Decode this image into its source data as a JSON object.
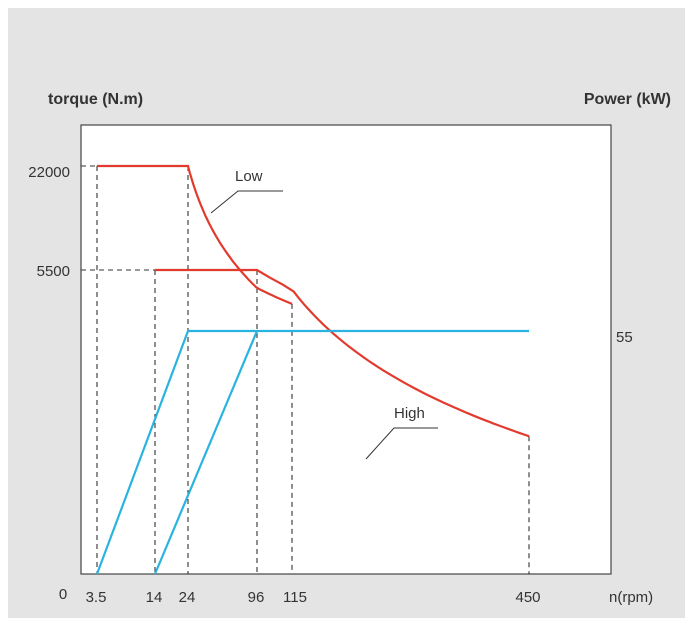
{
  "chart_data": {
    "type": "line",
    "left_axis_label": "torque (N.m)",
    "right_axis_label": "Power (kW)",
    "xlabel": "n(rpm)",
    "x_ticks": [
      "0",
      "3.5",
      "14",
      "24",
      "96",
      "115",
      "450"
    ],
    "y_left_ticks": [
      "22000",
      "5500"
    ],
    "y_right_ticks": [
      "55"
    ],
    "annotations": [
      "Low",
      "High"
    ],
    "colors": {
      "torque": "#e23b2e",
      "power": "#2bb3e0",
      "guide": "#333333"
    },
    "series": [
      {
        "name": "Low",
        "kind": "torque",
        "points": [
          [
            3.5,
            22000
          ],
          [
            24,
            22000
          ],
          [
            115,
            3500
          ]
        ]
      },
      {
        "name": "High",
        "kind": "torque",
        "points": [
          [
            14,
            5500
          ],
          [
            96,
            5500
          ],
          [
            450,
            600
          ]
        ]
      },
      {
        "kind": "power",
        "points": [
          [
            3.5,
            0
          ],
          [
            24,
            55
          ],
          [
            450,
            55
          ]
        ]
      },
      {
        "kind": "power",
        "points": [
          [
            14,
            0
          ],
          [
            96,
            55
          ]
        ]
      }
    ]
  }
}
